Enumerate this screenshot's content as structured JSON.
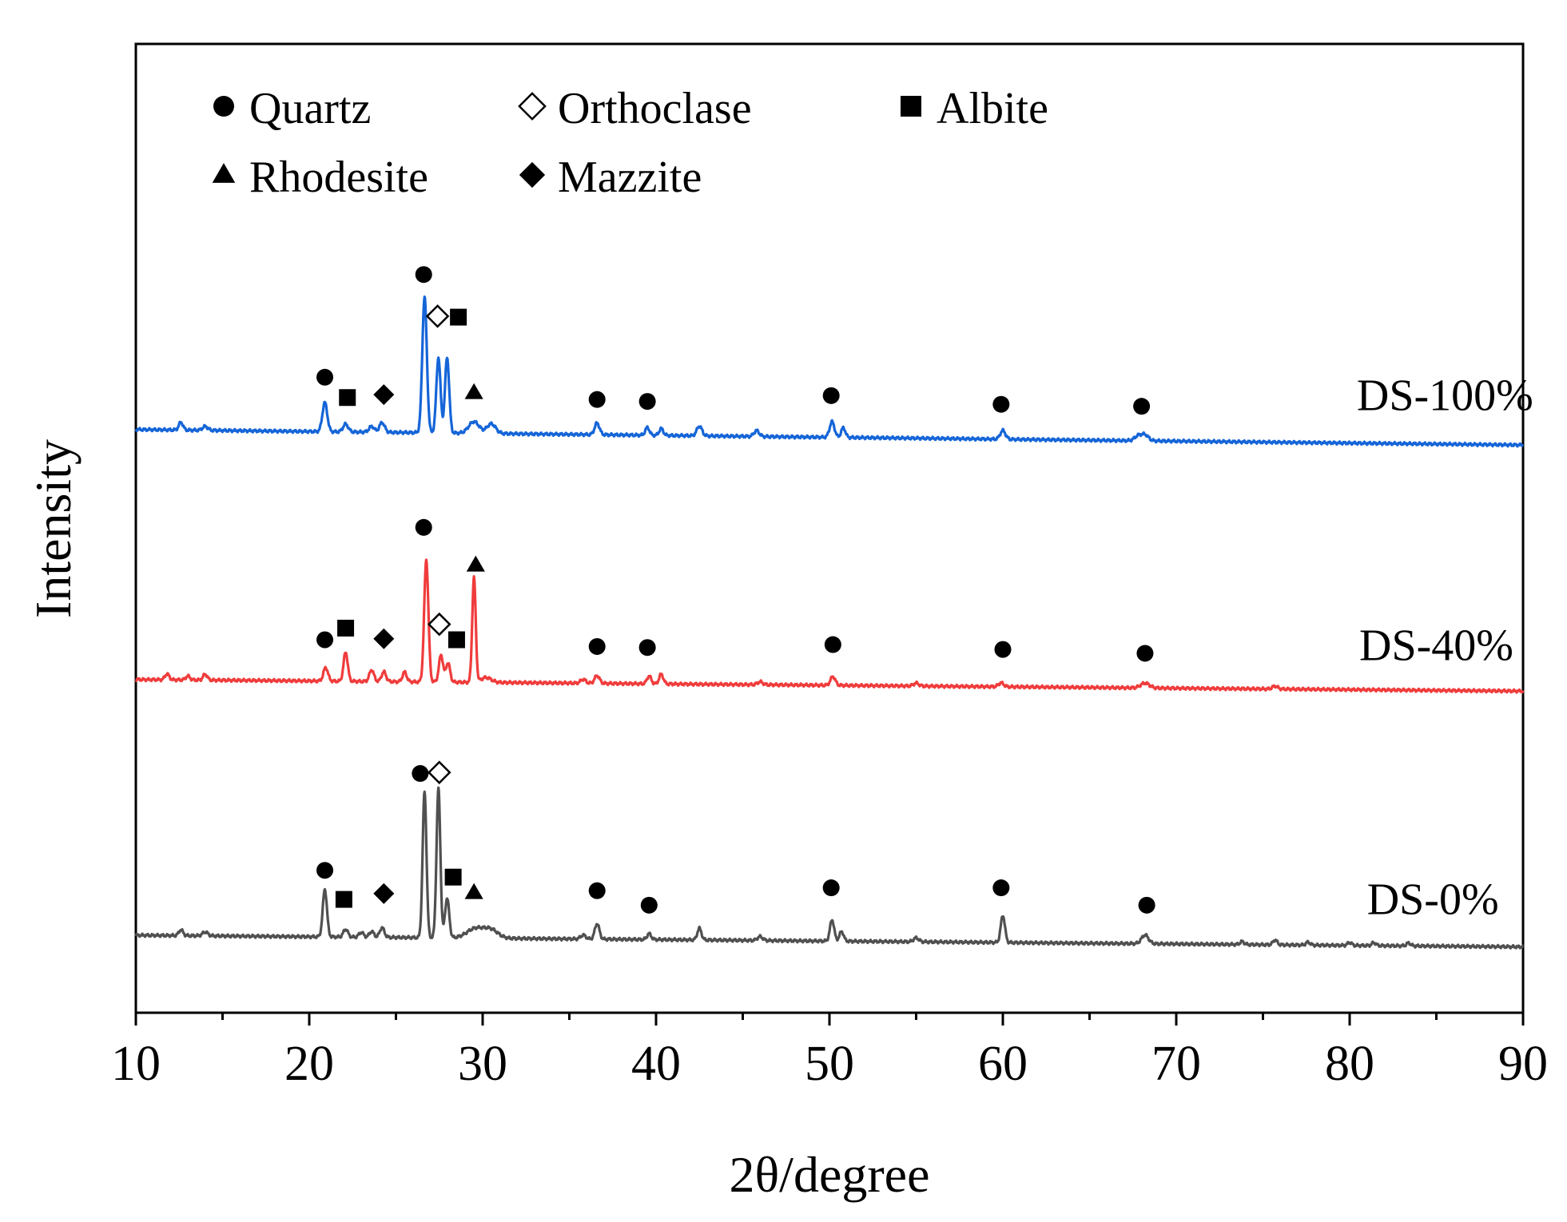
{
  "chart_data": {
    "type": "line",
    "title": "",
    "xlabel": "2θ/degree",
    "ylabel": "Intensity",
    "xlim": [
      10,
      90
    ],
    "x_ticks": [
      "10",
      "20",
      "30",
      "40",
      "50",
      "60",
      "70",
      "80",
      "90"
    ],
    "y_ticks": [],
    "grid": false,
    "legend": {
      "placement": "top-left",
      "entries": [
        {
          "key": "quartz",
          "label": "Quartz",
          "symbol": "filled-circle"
        },
        {
          "key": "orthoclase",
          "label": "Orthoclase",
          "symbol": "open-diamond"
        },
        {
          "key": "albite",
          "label": "Albite",
          "symbol": "filled-square"
        },
        {
          "key": "rhodesite",
          "label": "Rhodesite",
          "symbol": "filled-triangle"
        },
        {
          "key": "mazzite",
          "label": "Mazzite",
          "symbol": "filled-diamond"
        }
      ]
    },
    "series": [
      {
        "name": "DS-100%",
        "color": "#1565D8",
        "baseline": [
          [
            10,
            60.2
          ],
          [
            90,
            58.6
          ]
        ],
        "peaks": [
          [
            12.6,
            0.8,
            0.12
          ],
          [
            14,
            0.4,
            0.15
          ],
          [
            20.9,
            3.0,
            0.14
          ],
          [
            22.1,
            0.8,
            0.15
          ],
          [
            23.6,
            0.6,
            0.15
          ],
          [
            24.2,
            1.0,
            0.15
          ],
          [
            26.65,
            14.0,
            0.13
          ],
          [
            27.45,
            7.8,
            0.12
          ],
          [
            27.95,
            7.8,
            0.12
          ],
          [
            29.5,
            1.2,
            0.3
          ],
          [
            30.5,
            1.0,
            0.25
          ],
          [
            36.6,
            1.2,
            0.14
          ],
          [
            39.5,
            0.8,
            0.12
          ],
          [
            40.3,
            0.7,
            0.12
          ],
          [
            42.5,
            1.0,
            0.15
          ],
          [
            45.8,
            0.6,
            0.15
          ],
          [
            50.15,
            1.6,
            0.14
          ],
          [
            50.8,
            1.0,
            0.12
          ],
          [
            60.0,
            0.9,
            0.15
          ],
          [
            67.8,
            0.5,
            0.2
          ],
          [
            68.2,
            0.6,
            0.2
          ]
        ],
        "markers": [
          {
            "type": "quartz",
            "x": 20.9,
            "y": 65.6
          },
          {
            "type": "albite",
            "x": 22.2,
            "y": 63.5
          },
          {
            "type": "mazzite",
            "x": 24.3,
            "y": 63.8
          },
          {
            "type": "quartz",
            "x": 26.6,
            "y": 76.2
          },
          {
            "type": "orthoclase",
            "x": 27.4,
            "y": 71.9
          },
          {
            "type": "albite",
            "x": 28.6,
            "y": 71.8
          },
          {
            "type": "rhodesite",
            "x": 29.5,
            "y": 64.0
          },
          {
            "type": "quartz",
            "x": 36.6,
            "y": 63.3
          },
          {
            "type": "quartz",
            "x": 39.5,
            "y": 63.1
          },
          {
            "type": "quartz",
            "x": 50.1,
            "y": 63.7
          },
          {
            "type": "quartz",
            "x": 59.9,
            "y": 62.8
          },
          {
            "type": "quartz",
            "x": 68.0,
            "y": 62.6
          }
        ]
      },
      {
        "name": "DS-40%",
        "color": "#F03C3C",
        "baseline": [
          [
            10,
            34.4
          ],
          [
            90,
            33.2
          ]
        ],
        "peaks": [
          [
            11.8,
            0.6,
            0.12
          ],
          [
            13,
            0.4,
            0.12
          ],
          [
            14,
            0.6,
            0.12
          ],
          [
            20.95,
            1.4,
            0.13
          ],
          [
            22.1,
            3.0,
            0.12
          ],
          [
            23.6,
            1.2,
            0.13
          ],
          [
            24.3,
            1.0,
            0.13
          ],
          [
            25.5,
            1.0,
            0.12
          ],
          [
            26.75,
            12.6,
            0.12
          ],
          [
            27.6,
            2.8,
            0.12
          ],
          [
            28.0,
            2.0,
            0.12
          ],
          [
            29.5,
            10.8,
            0.1
          ],
          [
            30.2,
            0.5,
            0.3
          ],
          [
            35.8,
            0.4,
            0.15
          ],
          [
            36.6,
            0.8,
            0.14
          ],
          [
            39.6,
            0.8,
            0.12
          ],
          [
            40.3,
            1.0,
            0.12
          ],
          [
            46.0,
            0.3,
            0.15
          ],
          [
            50.2,
            0.9,
            0.14
          ],
          [
            55.0,
            0.3,
            0.15
          ],
          [
            59.9,
            0.4,
            0.15
          ],
          [
            68.2,
            0.5,
            0.25
          ],
          [
            75.7,
            0.3,
            0.15
          ]
        ],
        "markers": [
          {
            "type": "quartz",
            "x": 20.9,
            "y": 38.5
          },
          {
            "type": "albite",
            "x": 22.1,
            "y": 39.7
          },
          {
            "type": "mazzite",
            "x": 24.3,
            "y": 38.6
          },
          {
            "type": "quartz",
            "x": 26.6,
            "y": 50.1
          },
          {
            "type": "orthoclase",
            "x": 27.5,
            "y": 40.1
          },
          {
            "type": "albite",
            "x": 28.5,
            "y": 38.5
          },
          {
            "type": "rhodesite",
            "x": 29.6,
            "y": 46.2
          },
          {
            "type": "quartz",
            "x": 36.6,
            "y": 37.8
          },
          {
            "type": "quartz",
            "x": 39.5,
            "y": 37.7
          },
          {
            "type": "quartz",
            "x": 50.2,
            "y": 38.0
          },
          {
            "type": "quartz",
            "x": 60.0,
            "y": 37.5
          },
          {
            "type": "quartz",
            "x": 68.2,
            "y": 37.1
          }
        ]
      },
      {
        "name": "DS-0%",
        "color": "#505050",
        "baseline": [
          [
            10,
            8.0
          ],
          [
            90,
            6.8
          ]
        ],
        "peaks": [
          [
            12.6,
            0.6,
            0.12
          ],
          [
            14,
            0.4,
            0.15
          ],
          [
            20.9,
            4.9,
            0.12
          ],
          [
            22.1,
            0.8,
            0.13
          ],
          [
            23.0,
            0.5,
            0.13
          ],
          [
            23.6,
            0.6,
            0.13
          ],
          [
            24.2,
            1.0,
            0.13
          ],
          [
            26.65,
            15.1,
            0.11
          ],
          [
            27.45,
            15.4,
            0.11
          ],
          [
            27.95,
            4.1,
            0.12
          ],
          [
            29.6,
            1.0,
            0.5
          ],
          [
            30.5,
            0.8,
            0.4
          ],
          [
            35.8,
            0.4,
            0.15
          ],
          [
            36.6,
            1.6,
            0.13
          ],
          [
            39.6,
            0.6,
            0.12
          ],
          [
            42.5,
            1.2,
            0.12
          ],
          [
            46.0,
            0.4,
            0.15
          ],
          [
            50.15,
            2.2,
            0.12
          ],
          [
            50.7,
            1.0,
            0.12
          ],
          [
            55.0,
            0.4,
            0.15
          ],
          [
            60.0,
            2.8,
            0.12
          ],
          [
            68.2,
            0.9,
            0.2
          ],
          [
            73.8,
            0.3,
            0.12
          ],
          [
            75.7,
            0.5,
            0.12
          ],
          [
            77.6,
            0.3,
            0.12
          ],
          [
            80.0,
            0.3,
            0.12
          ],
          [
            81.4,
            0.3,
            0.12
          ],
          [
            83.4,
            0.3,
            0.12
          ]
        ],
        "markers": [
          {
            "type": "quartz",
            "x": 20.9,
            "y": 14.7
          },
          {
            "type": "albite",
            "x": 22.0,
            "y": 11.7
          },
          {
            "type": "mazzite",
            "x": 24.3,
            "y": 12.3
          },
          {
            "type": "quartz",
            "x": 26.4,
            "y": 24.7
          },
          {
            "type": "orthoclase",
            "x": 27.5,
            "y": 24.8
          },
          {
            "type": "albite",
            "x": 28.3,
            "y": 14.0
          },
          {
            "type": "rhodesite",
            "x": 29.5,
            "y": 12.4
          },
          {
            "type": "quartz",
            "x": 36.6,
            "y": 12.6
          },
          {
            "type": "quartz",
            "x": 39.6,
            "y": 11.1
          },
          {
            "type": "quartz",
            "x": 50.1,
            "y": 12.9
          },
          {
            "type": "quartz",
            "x": 59.9,
            "y": 12.9
          },
          {
            "type": "quartz",
            "x": 68.3,
            "y": 11.1
          }
        ]
      }
    ]
  }
}
